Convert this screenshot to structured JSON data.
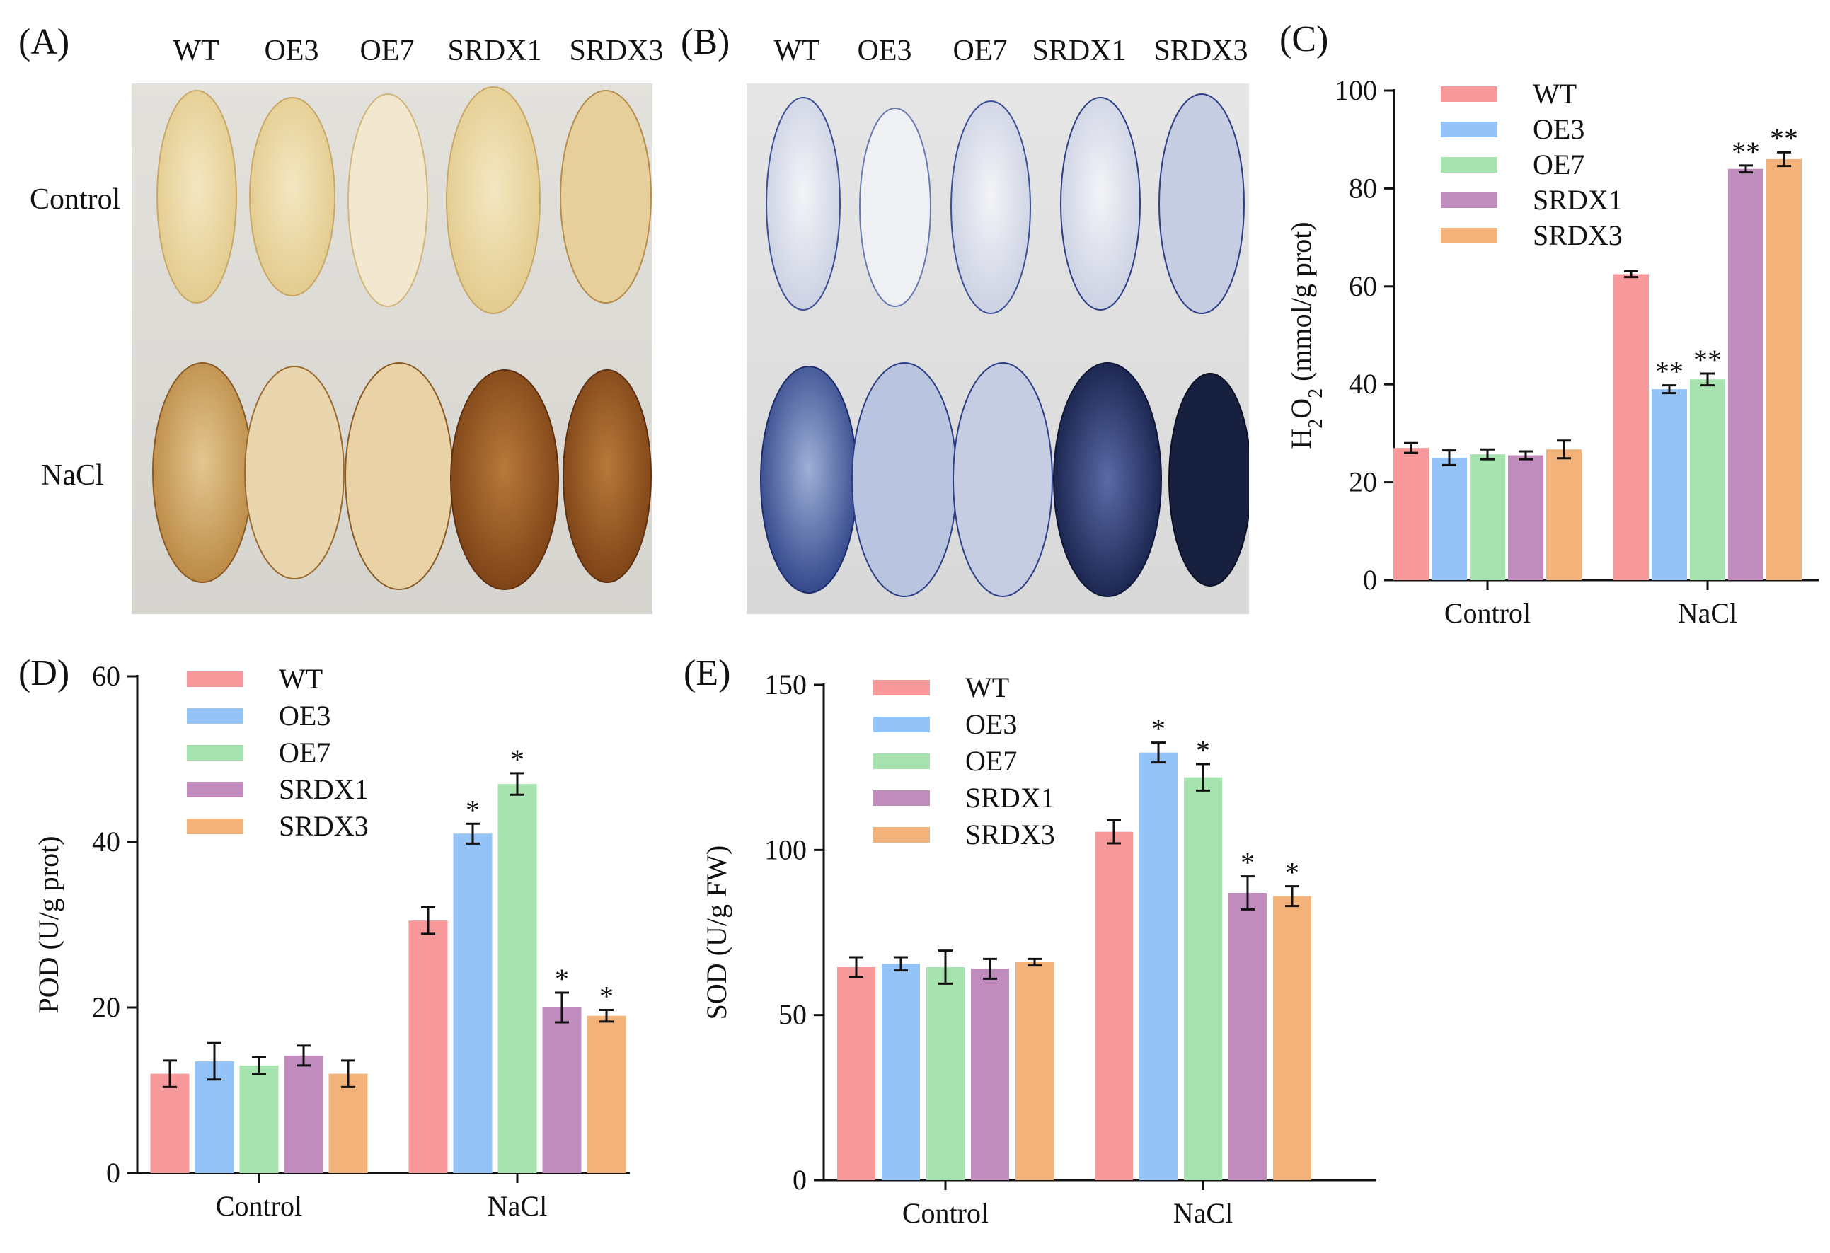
{
  "panel_a": {
    "label": "(A)",
    "columns": [
      "WT",
      "OE3",
      "OE7",
      "SRDX1",
      "SRDX3"
    ],
    "rows": [
      "Control",
      "NaCl"
    ]
  },
  "panel_b": {
    "label": "(B)",
    "columns": [
      "WT",
      "OE3",
      "OE7",
      "SRDX1",
      "SRDX3"
    ]
  },
  "colors": {
    "WT": "#F7999A",
    "OE3": "#94C3F7",
    "OE7": "#A6E3AE",
    "SRDX1": "#C08CBE",
    "SRDX3": "#F3B27A"
  },
  "chart_data": [
    {
      "panel": "(C)",
      "type": "bar",
      "ylabel": "H2O2 (mmol/g prot)",
      "ylabel_parts": {
        "pre": "H",
        "sub1": "2",
        "mid": "O",
        "sub2": "2",
        "post": " (mmol/g prot)"
      },
      "ylim": [
        0,
        100
      ],
      "yticks": [
        0,
        20,
        40,
        60,
        80,
        100
      ],
      "categories": [
        "Control",
        "NaCl"
      ],
      "series": [
        {
          "name": "WT",
          "values": [
            27,
            62.5
          ],
          "errors": [
            1,
            0.6
          ],
          "marks": [
            "",
            ""
          ]
        },
        {
          "name": "OE3",
          "values": [
            25,
            39
          ],
          "errors": [
            1.5,
            0.8
          ],
          "marks": [
            "",
            "**"
          ]
        },
        {
          "name": "OE7",
          "values": [
            25.7,
            41
          ],
          "errors": [
            1,
            1.2
          ],
          "marks": [
            "",
            "**"
          ]
        },
        {
          "name": "SRDX1",
          "values": [
            25.5,
            84
          ],
          "errors": [
            0.8,
            0.7
          ],
          "marks": [
            "",
            "**"
          ]
        },
        {
          "name": "SRDX3",
          "values": [
            26.7,
            86
          ],
          "errors": [
            1.8,
            1.4
          ],
          "marks": [
            "",
            "**"
          ]
        }
      ]
    },
    {
      "panel": "(D)",
      "type": "bar",
      "ylabel": "POD (U/g prot)",
      "ylim": [
        0,
        60
      ],
      "yticks": [
        0,
        20,
        40,
        60
      ],
      "categories": [
        "Control",
        "NaCl"
      ],
      "series": [
        {
          "name": "WT",
          "values": [
            12,
            30.5
          ],
          "errors": [
            1.6,
            1.6
          ],
          "marks": [
            "",
            ""
          ]
        },
        {
          "name": "OE3",
          "values": [
            13.5,
            41
          ],
          "errors": [
            2.2,
            1.2
          ],
          "marks": [
            "",
            "*"
          ]
        },
        {
          "name": "OE7",
          "values": [
            13,
            47
          ],
          "errors": [
            1,
            1.3
          ],
          "marks": [
            "",
            "*"
          ]
        },
        {
          "name": "SRDX1",
          "values": [
            14.2,
            20
          ],
          "errors": [
            1.2,
            1.8
          ],
          "marks": [
            "",
            "*"
          ]
        },
        {
          "name": "SRDX3",
          "values": [
            12,
            19
          ],
          "errors": [
            1.6,
            0.7
          ],
          "marks": [
            "",
            "*"
          ]
        }
      ]
    },
    {
      "panel": "(E)",
      "type": "bar",
      "ylabel": "SOD (U/g FW)",
      "ylim": [
        0,
        150
      ],
      "yticks": [
        0,
        50,
        100,
        150
      ],
      "categories": [
        "Control",
        "NaCl"
      ],
      "series": [
        {
          "name": "WT",
          "values": [
            64.5,
            105.5
          ],
          "errors": [
            3,
            3.5
          ],
          "marks": [
            "",
            ""
          ]
        },
        {
          "name": "OE3",
          "values": [
            65.5,
            129.5
          ],
          "errors": [
            2,
            3
          ],
          "marks": [
            "",
            "*"
          ]
        },
        {
          "name": "OE7",
          "values": [
            64.5,
            122
          ],
          "errors": [
            5,
            4
          ],
          "marks": [
            "",
            "*"
          ]
        },
        {
          "name": "SRDX1",
          "values": [
            64,
            87
          ],
          "errors": [
            3,
            5
          ],
          "marks": [
            "",
            "*"
          ]
        },
        {
          "name": "SRDX3",
          "values": [
            66,
            86
          ],
          "errors": [
            1,
            3
          ],
          "marks": [
            "",
            "*"
          ]
        }
      ]
    }
  ]
}
